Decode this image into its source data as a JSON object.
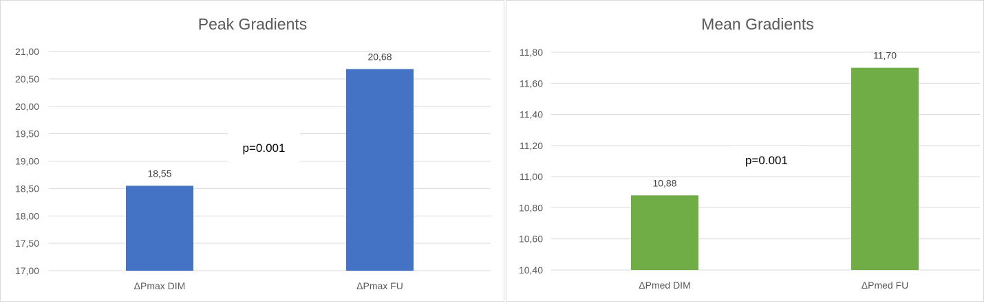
{
  "chart_data": [
    {
      "type": "bar",
      "title": "Peak Gradients",
      "categories": [
        "ΔPmax DIM",
        "ΔPmax FU"
      ],
      "values": [
        18.55,
        20.68
      ],
      "data_labels": [
        "18,55",
        "20,68"
      ],
      "ylim": [
        17,
        21
      ],
      "yticks": [
        "17,00",
        "17,50",
        "18,00",
        "18,50",
        "19,00",
        "19,50",
        "20,00",
        "20,50",
        "21,00"
      ],
      "annotation": "p=0.001",
      "bar_color": "#4472C4",
      "grid": true
    },
    {
      "type": "bar",
      "title": "Mean Gradients",
      "categories": [
        "ΔPmed DIM",
        "ΔPmed FU"
      ],
      "values": [
        10.88,
        11.7
      ],
      "data_labels": [
        "10,88",
        "11,70"
      ],
      "ylim": [
        10.4,
        11.8
      ],
      "yticks": [
        "10,40",
        "10,60",
        "10,80",
        "11,00",
        "11,20",
        "11,40",
        "11,60",
        "11,80"
      ],
      "annotation": "p=0.001",
      "bar_color": "#70AD47",
      "grid": true
    }
  ]
}
